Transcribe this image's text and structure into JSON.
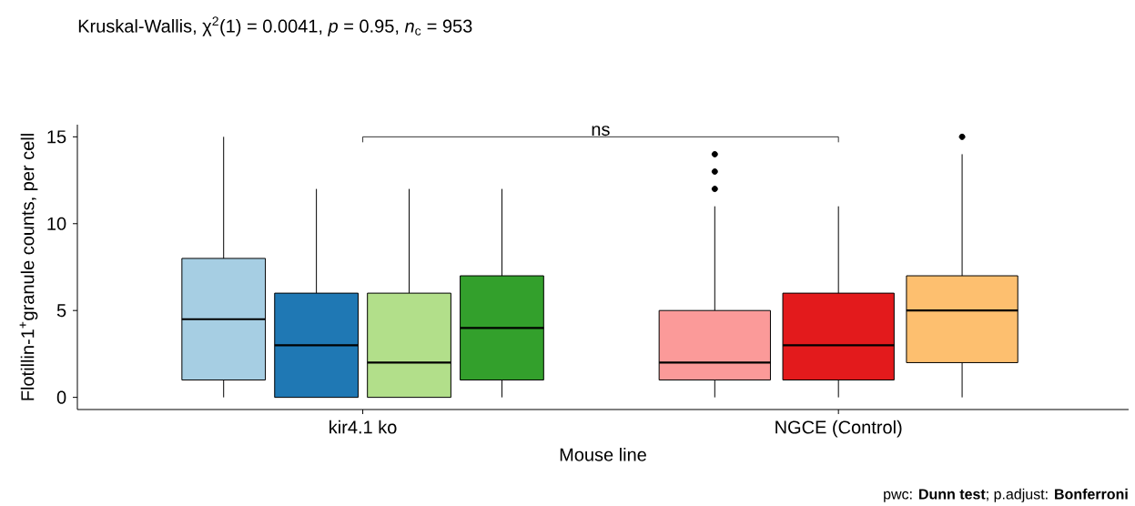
{
  "chart_data": {
    "type": "box",
    "title": "Kruskal-Wallis, χ$^{2}$(1) = 0.0041, *p* = 0.95, *n*$_{c}$ = 953",
    "xlabel": "Mouse line",
    "ylabel": "Flotillin-1$^{+}$granule counts, per cell",
    "categories": [
      "kir4.1 ko",
      "NGCE (Control)"
    ],
    "ylim": [
      -0.7,
      15.7
    ],
    "yticks": [
      0,
      5,
      10,
      15
    ],
    "grid": false,
    "series": [
      {
        "color": "#a6cee3",
        "boxes": [
          {
            "low": 0,
            "q1": 1,
            "median": 4.5,
            "q3": 8,
            "high": 15
          },
          null
        ]
      },
      {
        "color": "#1f78b4",
        "boxes": [
          {
            "low": 0,
            "q1": 0,
            "median": 3,
            "q3": 6,
            "high": 12
          },
          null
        ]
      },
      {
        "color": "#b2df8a",
        "boxes": [
          {
            "low": 0,
            "q1": 0,
            "median": 2,
            "q3": 6,
            "high": 12
          },
          null
        ]
      },
      {
        "color": "#33a02c",
        "boxes": [
          {
            "low": 0,
            "q1": 1,
            "median": 4,
            "q3": 7,
            "high": 12
          },
          null
        ]
      },
      {
        "color": "#fb9a99",
        "boxes": [
          null,
          {
            "low": 0,
            "q1": 1,
            "median": 2,
            "q3": 5,
            "high": 11,
            "outliers": [
              12,
              13,
              14
            ]
          }
        ]
      },
      {
        "color": "#e31a1c",
        "boxes": [
          null,
          {
            "low": 0,
            "q1": 1,
            "median": 3,
            "q3": 6,
            "high": 11
          }
        ]
      },
      {
        "color": "#fdbf6f",
        "boxes": [
          null,
          {
            "low": 0,
            "q1": 2,
            "median": 5,
            "q3": 7,
            "high": 14,
            "outliers": [
              15
            ]
          }
        ]
      }
    ],
    "annotations": [
      "ns",
      "pwc: **Dunn test**; p.adjust: **Bonferroni**"
    ]
  }
}
